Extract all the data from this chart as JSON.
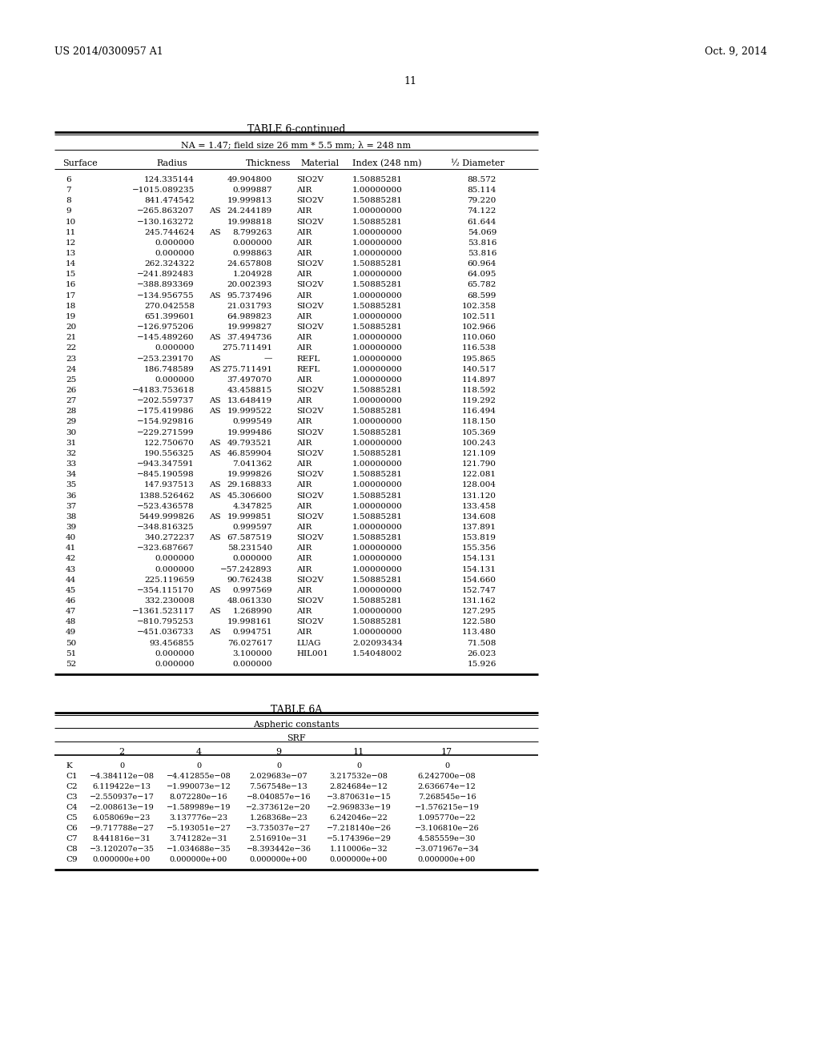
{
  "header_left": "US 2014/0300957 A1",
  "header_right": "Oct. 9, 2014",
  "page_number": "11",
  "table6_title": "TABLE 6-continued",
  "table6_subtitle": "NA = 1.47; field size 26 mm * 5.5 mm; λ = 248 nm",
  "table6_data": [
    [
      "6",
      "124.335144",
      "",
      "49.904800",
      "SIO2V",
      "1.50885281",
      "88.572"
    ],
    [
      "7",
      "−1015.089235",
      "",
      "0.999887",
      "AIR",
      "1.00000000",
      "85.114"
    ],
    [
      "8",
      "841.474542",
      "",
      "19.999813",
      "SIO2V",
      "1.50885281",
      "79.220"
    ],
    [
      "9",
      "−265.863207",
      "AS",
      "24.244189",
      "AIR",
      "1.00000000",
      "74.122"
    ],
    [
      "10",
      "−130.163272",
      "",
      "19.998818",
      "SIO2V",
      "1.50885281",
      "61.644"
    ],
    [
      "11",
      "245.744624",
      "AS",
      "8.799263",
      "AIR",
      "1.00000000",
      "54.069"
    ],
    [
      "12",
      "0.000000",
      "",
      "0.000000",
      "AIR",
      "1.00000000",
      "53.816"
    ],
    [
      "13",
      "0.000000",
      "",
      "0.998863",
      "AIR",
      "1.00000000",
      "53.816"
    ],
    [
      "14",
      "262.324322",
      "",
      "24.657808",
      "SIO2V",
      "1.50885281",
      "60.964"
    ],
    [
      "15",
      "−241.892483",
      "",
      "1.204928",
      "AIR",
      "1.00000000",
      "64.095"
    ],
    [
      "16",
      "−388.893369",
      "",
      "20.002393",
      "SIO2V",
      "1.50885281",
      "65.782"
    ],
    [
      "17",
      "−134.956755",
      "AS",
      "95.737496",
      "AIR",
      "1.00000000",
      "68.599"
    ],
    [
      "18",
      "270.042558",
      "",
      "21.031793",
      "SIO2V",
      "1.50885281",
      "102.358"
    ],
    [
      "19",
      "651.399601",
      "",
      "64.989823",
      "AIR",
      "1.00000000",
      "102.511"
    ],
    [
      "20",
      "−126.975206",
      "",
      "19.999827",
      "SIO2V",
      "1.50885281",
      "102.966"
    ],
    [
      "21",
      "−145.489260",
      "AS",
      "37.494736",
      "AIR",
      "1.00000000",
      "110.060"
    ],
    [
      "22",
      "0.000000",
      "",
      "275.711491",
      "AIR",
      "1.00000000",
      "116.538"
    ],
    [
      "23",
      "−253.239170",
      "AS",
      "—",
      "REFL",
      "1.00000000",
      "195.865"
    ],
    [
      "24",
      "186.748589",
      "AS",
      "275.711491",
      "REFL",
      "1.00000000",
      "140.517"
    ],
    [
      "25",
      "0.000000",
      "",
      "37.497070",
      "AIR",
      "1.00000000",
      "114.897"
    ],
    [
      "26",
      "−4183.753618",
      "",
      "43.458815",
      "SIO2V",
      "1.50885281",
      "118.592"
    ],
    [
      "27",
      "−202.559737",
      "AS",
      "13.648419",
      "AIR",
      "1.00000000",
      "119.292"
    ],
    [
      "28",
      "−175.419986",
      "AS",
      "19.999522",
      "SIO2V",
      "1.50885281",
      "116.494"
    ],
    [
      "29",
      "−154.929816",
      "",
      "0.999549",
      "AIR",
      "1.00000000",
      "118.150"
    ],
    [
      "30",
      "−229.271599",
      "",
      "19.999486",
      "SIO2V",
      "1.50885281",
      "105.369"
    ],
    [
      "31",
      "122.750670",
      "AS",
      "49.793521",
      "AIR",
      "1.00000000",
      "100.243"
    ],
    [
      "32",
      "190.556325",
      "AS",
      "46.859904",
      "SIO2V",
      "1.50885281",
      "121.109"
    ],
    [
      "33",
      "−943.347591",
      "",
      "7.041362",
      "AIR",
      "1.00000000",
      "121.790"
    ],
    [
      "34",
      "−845.190598",
      "",
      "19.999826",
      "SIO2V",
      "1.50885281",
      "122.081"
    ],
    [
      "35",
      "147.937513",
      "AS",
      "29.168833",
      "AIR",
      "1.00000000",
      "128.004"
    ],
    [
      "36",
      "1388.526462",
      "AS",
      "45.306600",
      "SIO2V",
      "1.50885281",
      "131.120"
    ],
    [
      "37",
      "−523.436578",
      "",
      "4.347825",
      "AIR",
      "1.00000000",
      "133.458"
    ],
    [
      "38",
      "5449.999826",
      "AS",
      "19.999851",
      "SIO2V",
      "1.50885281",
      "134.608"
    ],
    [
      "39",
      "−348.816325",
      "",
      "0.999597",
      "AIR",
      "1.00000000",
      "137.891"
    ],
    [
      "40",
      "340.272237",
      "AS",
      "67.587519",
      "SIO2V",
      "1.50885281",
      "153.819"
    ],
    [
      "41",
      "−323.687667",
      "",
      "58.231540",
      "AIR",
      "1.00000000",
      "155.356"
    ],
    [
      "42",
      "0.000000",
      "",
      "0.000000",
      "AIR",
      "1.00000000",
      "154.131"
    ],
    [
      "43",
      "0.000000",
      "",
      "−57.242893",
      "AIR",
      "1.00000000",
      "154.131"
    ],
    [
      "44",
      "225.119659",
      "",
      "90.762438",
      "SIO2V",
      "1.50885281",
      "154.660"
    ],
    [
      "45",
      "−354.115170",
      "AS",
      "0.997569",
      "AIR",
      "1.00000000",
      "152.747"
    ],
    [
      "46",
      "332.230008",
      "",
      "48.061330",
      "SIO2V",
      "1.50885281",
      "131.162"
    ],
    [
      "47",
      "−1361.523117",
      "AS",
      "1.268990",
      "AIR",
      "1.00000000",
      "127.295"
    ],
    [
      "48",
      "−810.795253",
      "",
      "19.998161",
      "SIO2V",
      "1.50885281",
      "122.580"
    ],
    [
      "49",
      "−451.036733",
      "AS",
      "0.994751",
      "AIR",
      "1.00000000",
      "113.480"
    ],
    [
      "50",
      "93.456855",
      "",
      "76.027617",
      "LUAG",
      "2.02093434",
      "71.508"
    ],
    [
      "51",
      "0.000000",
      "",
      "3.100000",
      "HIL001",
      "1.54048002",
      "26.023"
    ],
    [
      "52",
      "0.000000",
      "",
      "0.000000",
      "",
      "",
      "15.926"
    ]
  ],
  "table6a_title": "TABLE 6A",
  "table6a_subtitle": "Aspheric constants",
  "table6a_srf_label": "SRF",
  "table6a_srf_cols": [
    "2",
    "4",
    "9",
    "11",
    "17"
  ],
  "table6a_data": [
    [
      "K",
      "0",
      "0",
      "0",
      "0",
      "0"
    ],
    [
      "C1",
      "−4.384112e−08",
      "−4.412855e−08",
      "2.029683e−07",
      "3.217532e−08",
      "6.242700e−08"
    ],
    [
      "C2",
      "6.119422e−13",
      "−1.990073e−12",
      "7.567548e−13",
      "2.824684e−12",
      "2.636674e−12"
    ],
    [
      "C3",
      "−2.550937e−17",
      "8.072280e−16",
      "−8.040857e−16",
      "−3.870631e−15",
      "7.268545e−16"
    ],
    [
      "C4",
      "−2.008613e−19",
      "−1.589989e−19",
      "−2.373612e−20",
      "−2.969833e−19",
      "−1.576215e−19"
    ],
    [
      "C5",
      "6.058069e−23",
      "3.137776e−23",
      "1.268368e−23",
      "6.242046e−22",
      "1.095770e−22"
    ],
    [
      "C6",
      "−9.717788e−27",
      "−5.193051e−27",
      "−3.735037e−27",
      "−7.218140e−26",
      "−3.106810e−26"
    ],
    [
      "C7",
      "8.441816e−31",
      "3.741282e−31",
      "2.516910e−31",
      "−5.174396e−29",
      "4.585559e−30"
    ],
    [
      "C8",
      "−3.120207e−35",
      "−1.034688e−35",
      "−8.393442e−36",
      "1.110006e−32",
      "−3.071967e−34"
    ],
    [
      "C9",
      "0.000000e+00",
      "0.000000e+00",
      "0.000000e+00",
      "0.000000e+00",
      "0.000000e+00"
    ]
  ],
  "bg_color": "#ffffff",
  "text_color": "#000000"
}
